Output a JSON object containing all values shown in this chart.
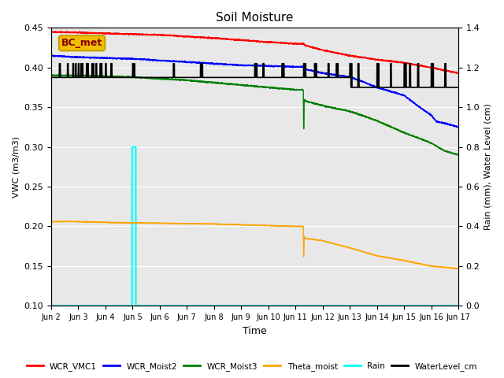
{
  "title": "Soil Moisture",
  "xlabel": "Time",
  "ylabel_left": "VWC (m3/m3)",
  "ylabel_right": "Rain (mm), Water Level (cm)",
  "ylim_left": [
    0.1,
    0.45
  ],
  "ylim_right": [
    0.0,
    1.4
  ],
  "x_tick_labels": [
    "Jun 2",
    "Jun 3",
    "Jun 4",
    "Jun 5",
    "Jun 6",
    "Jun 7",
    "Jun 8",
    "Jun 9",
    "Jun 10",
    "Jun 11",
    "Jun 12",
    "Jun 13",
    "Jun 14",
    "Jun 15",
    "Jun 16",
    "Jun 17"
  ],
  "background_color": "#e8e8e8",
  "annotation_text": "BC_met",
  "legend_labels": [
    "WCR_VMC1",
    "WCR_Moist2",
    "WCR_Moist3",
    "Theta_moist",
    "Rain",
    "WaterLevel_cm"
  ],
  "legend_colors": [
    "red",
    "blue",
    "green",
    "orange",
    "cyan",
    "black"
  ],
  "figsize": [
    6.4,
    4.8
  ],
  "dpi": 100
}
